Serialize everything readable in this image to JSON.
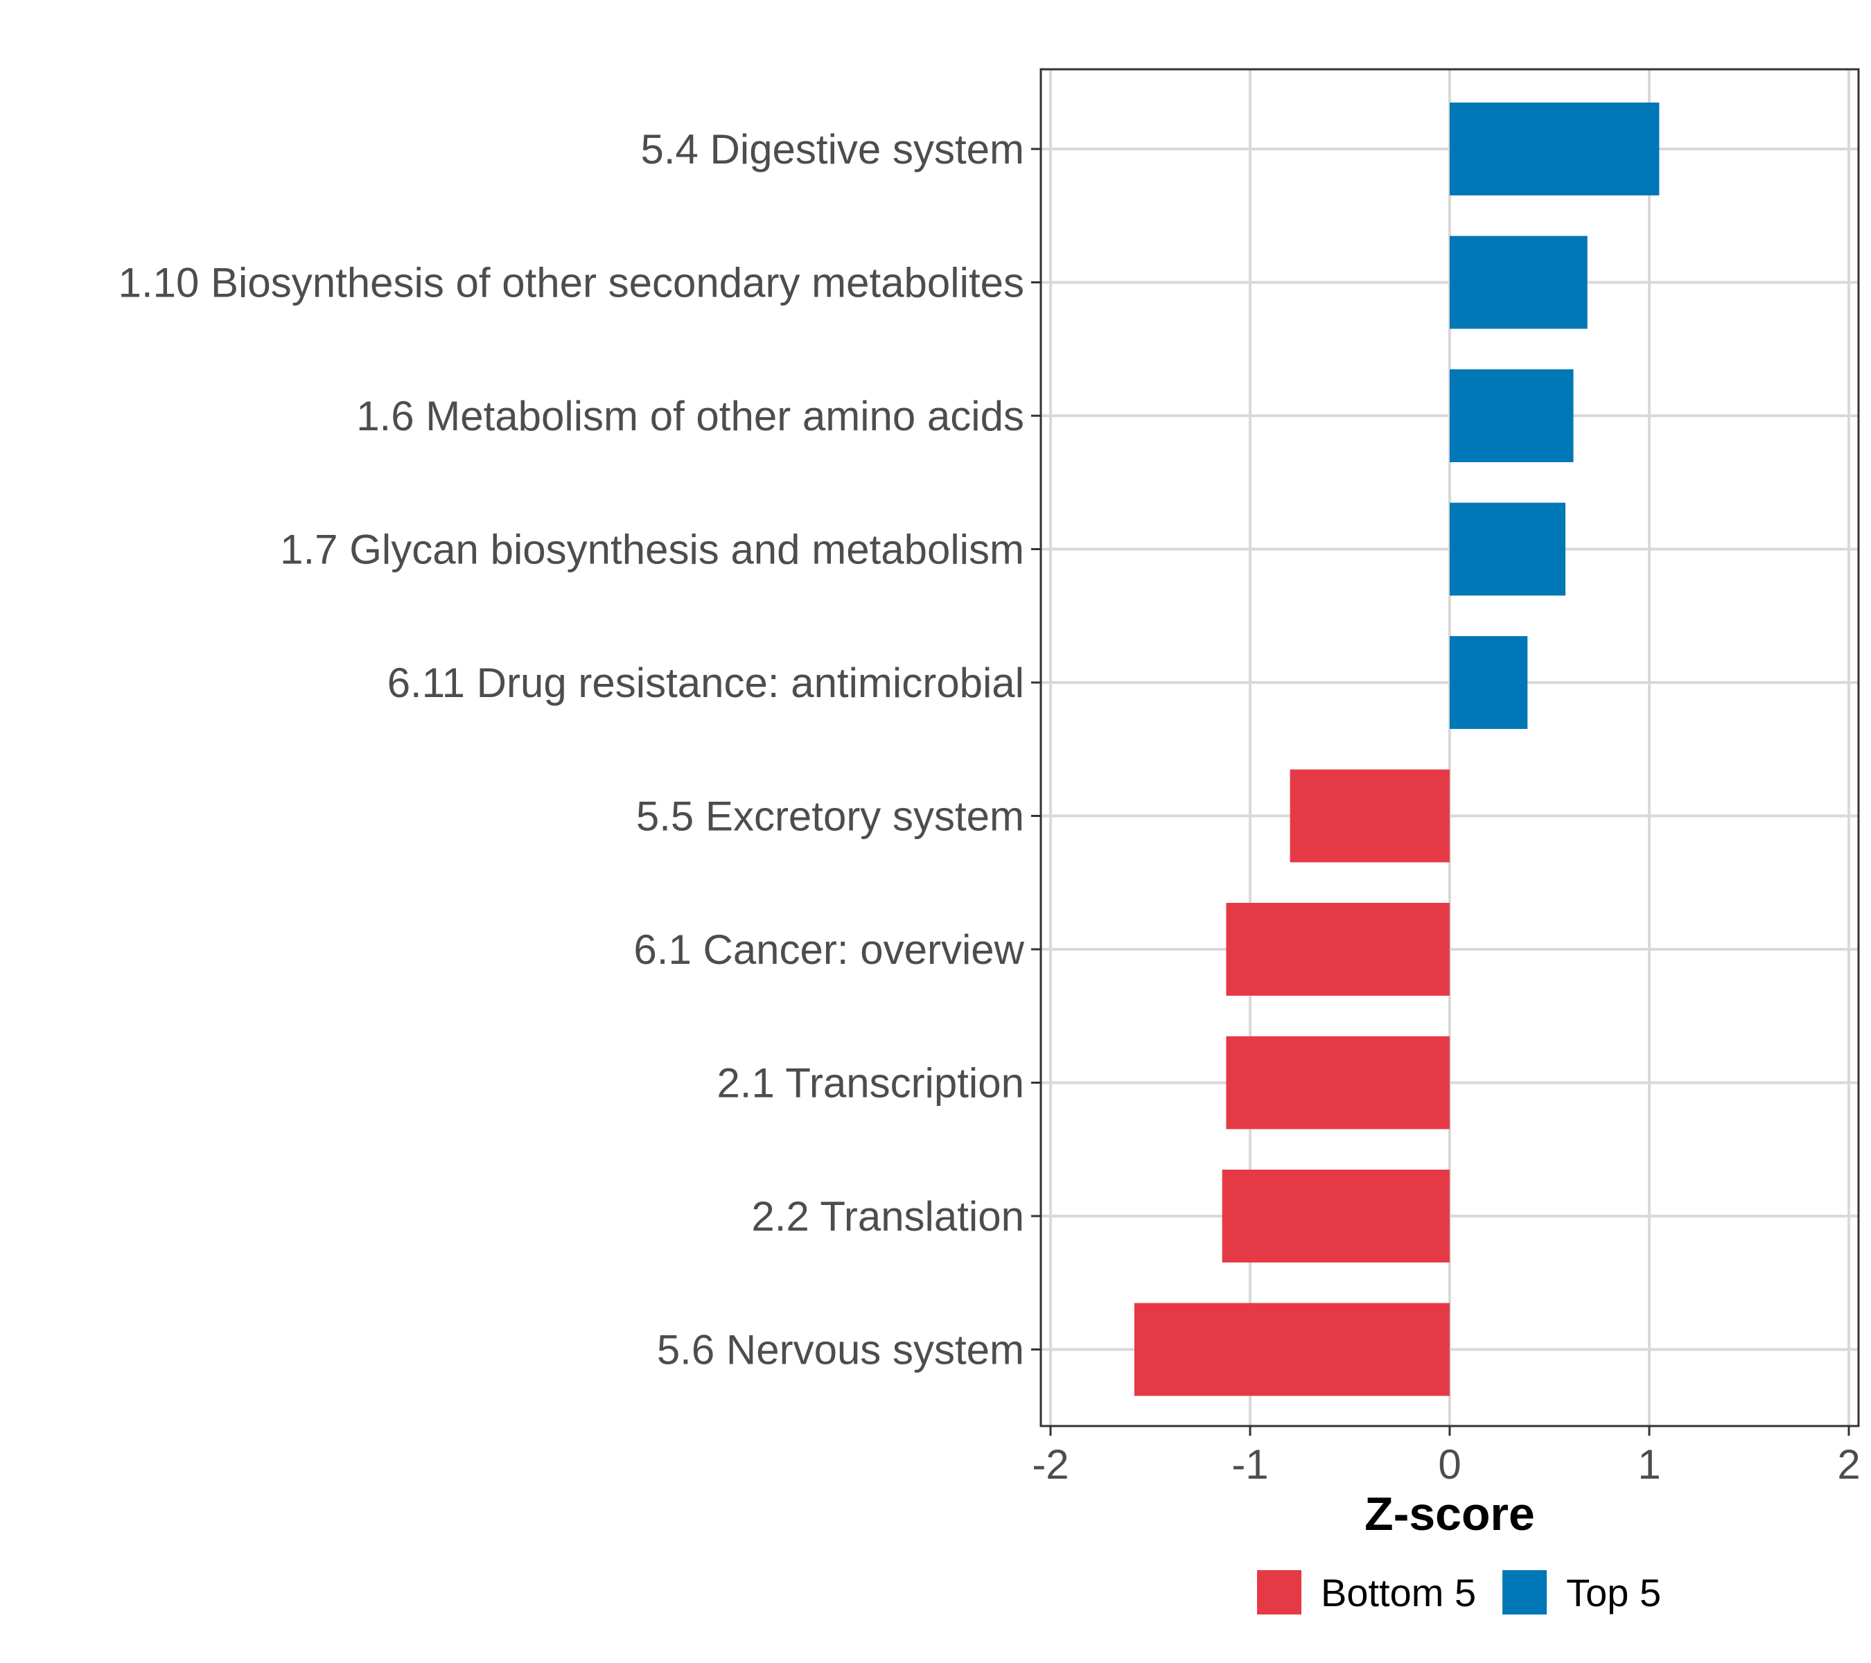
{
  "chart_data": {
    "type": "bar",
    "orientation": "horizontal",
    "title": "",
    "xlabel": "Z-score",
    "ylabel": "",
    "xlim": [
      -2,
      2
    ],
    "xticks": [
      -2,
      -1,
      0,
      1,
      2
    ],
    "xtick_labels": [
      "-2",
      "-1",
      "0",
      "1",
      "2"
    ],
    "grid": true,
    "legend_position": "bottom",
    "categories": [
      "5.4 Digestive system",
      "1.10 Biosynthesis of other secondary metabolites",
      "1.6 Metabolism of other amino acids",
      "1.7 Glycan biosynthesis and metabolism",
      "6.11 Drug resistance: antimicrobial",
      "5.5 Excretory system",
      "6.1 Cancer: overview",
      "2.1 Transcription",
      "2.2 Translation",
      "5.6 Nervous system"
    ],
    "values": [
      1.05,
      0.69,
      0.62,
      0.58,
      0.39,
      -0.8,
      -1.12,
      -1.12,
      -1.14,
      -1.58
    ],
    "groups": [
      "Top 5",
      "Top 5",
      "Top 5",
      "Top 5",
      "Top 5",
      "Bottom 5",
      "Bottom 5",
      "Bottom 5",
      "Bottom 5",
      "Bottom 5"
    ],
    "legend": [
      {
        "label": "Bottom 5",
        "color": "#e63946"
      },
      {
        "label": "Top 5",
        "color": "#0077b6"
      }
    ]
  }
}
